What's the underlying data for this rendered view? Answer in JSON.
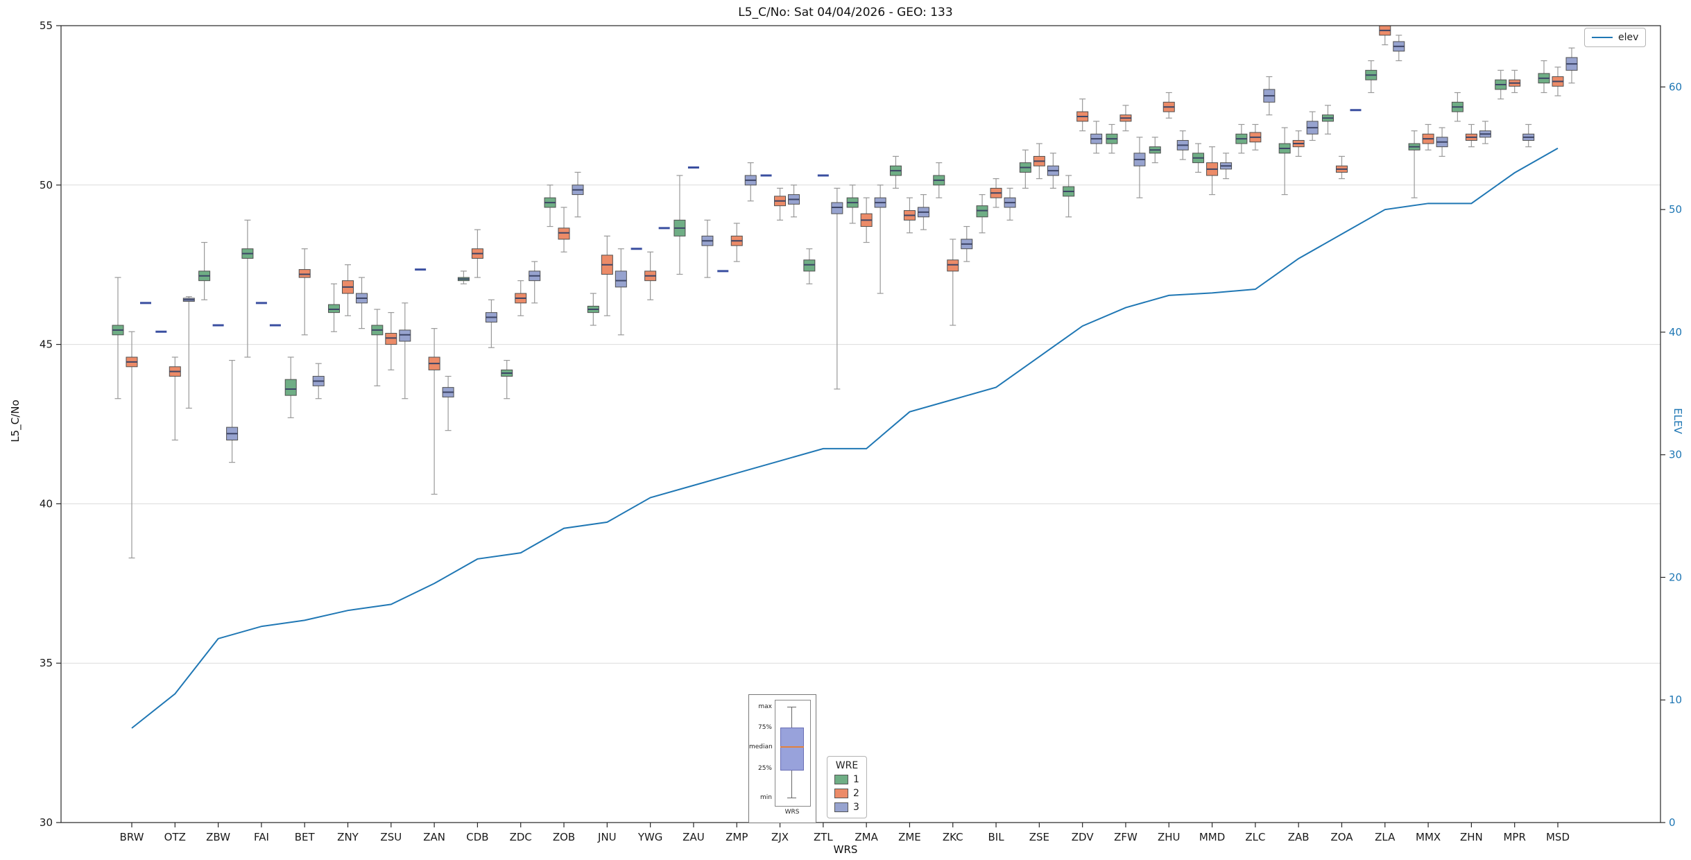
{
  "title": "L5_C/No: Sat 04/04/2026 - GEO: 133",
  "axes": {
    "left_label": "L5_C/No",
    "right_label": "ELEV",
    "x_label": "WRS",
    "left_ticks": [
      30,
      35,
      40,
      45,
      50,
      55
    ],
    "right_ticks": [
      0,
      10,
      20,
      30,
      40,
      50,
      60
    ],
    "left_range": [
      30,
      55
    ],
    "right_range": [
      0,
      65
    ]
  },
  "legend_elev": {
    "label": "elev",
    "color": "#1f77b4"
  },
  "legend_wre": {
    "title": "WRE",
    "entries": [
      {
        "label": "1",
        "color": "#6fae85"
      },
      {
        "label": "2",
        "color": "#ec8b68"
      },
      {
        "label": "3",
        "color": "#97a3cf"
      }
    ]
  },
  "inset": {
    "labels": [
      "max",
      "75%",
      "median",
      "25%",
      "min"
    ],
    "xlabel": "WRS"
  },
  "chart_data": {
    "type": "boxplot+line",
    "categories": [
      "BRW",
      "OTZ",
      "ZBW",
      "FAI",
      "BET",
      "ZNY",
      "ZSU",
      "ZAN",
      "CDB",
      "ZDC",
      "ZOB",
      "JNU",
      "YWG",
      "ZAU",
      "ZMP",
      "ZJX",
      "ZTL",
      "ZMA",
      "ZME",
      "ZKC",
      "BIL",
      "ZSE",
      "ZDV",
      "ZFW",
      "ZHU",
      "MMD",
      "ZLC",
      "ZAB",
      "ZOA",
      "ZLA",
      "MMX",
      "ZHN",
      "MPR",
      "MSD"
    ],
    "box_stats_order": [
      "min",
      "q1",
      "median",
      "q3",
      "max"
    ],
    "series": [
      {
        "name": "1",
        "color": "#6fae85",
        "boxes": [
          [
            43.3,
            45.3,
            45.45,
            45.6,
            47.1
          ],
          [
            45.4,
            45.4,
            45.4,
            45.4,
            45.4
          ],
          [
            46.4,
            47.0,
            47.15,
            47.3,
            48.2
          ],
          [
            44.6,
            47.7,
            47.85,
            48.0,
            48.9
          ],
          [
            42.7,
            43.4,
            43.6,
            43.9,
            44.6
          ],
          [
            45.4,
            46.0,
            46.1,
            46.25,
            46.9
          ],
          [
            43.7,
            45.3,
            45.45,
            45.6,
            46.1
          ],
          [
            47.35,
            47.35,
            47.35,
            47.35,
            47.35
          ],
          [
            46.9,
            47.0,
            47.05,
            47.1,
            47.3
          ],
          [
            43.3,
            44.0,
            44.1,
            44.2,
            44.5
          ],
          [
            48.7,
            49.3,
            49.45,
            49.6,
            50.0
          ],
          [
            45.6,
            46.0,
            46.1,
            46.2,
            46.6
          ],
          [
            48.0,
            48.0,
            48.0,
            48.0,
            48.0
          ],
          [
            47.2,
            48.4,
            48.65,
            48.9,
            50.3
          ],
          [
            47.3,
            47.3,
            47.3,
            47.3,
            47.3
          ],
          [
            50.3,
            50.3,
            50.3,
            50.3,
            50.3
          ],
          [
            46.9,
            47.3,
            47.5,
            47.65,
            48.0
          ],
          [
            48.8,
            49.3,
            49.45,
            49.6,
            50.0
          ],
          [
            49.9,
            50.3,
            50.45,
            50.6,
            50.9
          ],
          [
            49.6,
            50.0,
            50.15,
            50.3,
            50.7
          ],
          [
            48.5,
            49.0,
            49.2,
            49.35,
            49.7
          ],
          [
            49.9,
            50.4,
            50.55,
            50.7,
            51.1
          ],
          [
            49.0,
            49.65,
            49.8,
            49.95,
            50.3
          ],
          [
            51.0,
            51.3,
            51.45,
            51.6,
            51.9
          ],
          [
            50.7,
            51.0,
            51.1,
            51.2,
            51.5
          ],
          [
            50.4,
            50.7,
            50.85,
            51.0,
            51.3
          ],
          [
            51.0,
            51.3,
            51.45,
            51.6,
            51.9
          ],
          [
            49.7,
            51.0,
            51.15,
            51.3,
            51.8
          ],
          [
            51.6,
            52.0,
            52.1,
            52.2,
            52.5
          ],
          [
            52.9,
            53.3,
            53.45,
            53.6,
            53.9
          ],
          [
            49.6,
            51.1,
            51.2,
            51.3,
            51.7
          ],
          [
            52.0,
            52.3,
            52.45,
            52.6,
            52.9
          ],
          [
            52.7,
            53.0,
            53.15,
            53.3,
            53.6
          ],
          [
            52.9,
            53.2,
            53.35,
            53.5,
            53.9
          ]
        ]
      },
      {
        "name": "2",
        "color": "#ec8b68",
        "boxes": [
          [
            38.3,
            44.3,
            44.45,
            44.6,
            45.4
          ],
          [
            42.0,
            44.0,
            44.15,
            44.3,
            44.6
          ],
          [
            45.6,
            45.6,
            45.6,
            45.6,
            45.6
          ],
          [
            46.3,
            46.3,
            46.3,
            46.3,
            46.3
          ],
          [
            45.3,
            47.1,
            47.2,
            47.35,
            48.0
          ],
          [
            45.9,
            46.6,
            46.8,
            47.0,
            47.5
          ],
          [
            44.2,
            45.0,
            45.2,
            45.35,
            46.0
          ],
          [
            40.3,
            44.2,
            44.4,
            44.6,
            45.5
          ],
          [
            47.1,
            47.7,
            47.85,
            48.0,
            48.6
          ],
          [
            45.9,
            46.3,
            46.45,
            46.6,
            47.0
          ],
          [
            47.9,
            48.3,
            48.5,
            48.65,
            49.3
          ],
          [
            45.9,
            47.2,
            47.5,
            47.8,
            48.4
          ],
          [
            46.4,
            47.0,
            47.15,
            47.3,
            47.9
          ],
          [
            50.55,
            50.55,
            50.55,
            50.55,
            50.55
          ],
          [
            47.6,
            48.1,
            48.25,
            48.4,
            48.8
          ],
          [
            48.9,
            49.35,
            49.5,
            49.65,
            49.9
          ],
          [
            50.3,
            50.3,
            50.3,
            50.3,
            50.3
          ],
          [
            48.2,
            48.7,
            48.9,
            49.1,
            49.6
          ],
          [
            48.5,
            48.9,
            49.05,
            49.2,
            49.6
          ],
          [
            45.6,
            47.3,
            47.5,
            47.65,
            48.3
          ],
          [
            49.3,
            49.6,
            49.75,
            49.9,
            50.2
          ],
          [
            50.2,
            50.6,
            50.75,
            50.9,
            51.3
          ],
          [
            51.7,
            52.0,
            52.15,
            52.3,
            52.7
          ],
          [
            51.7,
            52.0,
            52.1,
            52.2,
            52.5
          ],
          [
            52.1,
            52.3,
            52.45,
            52.6,
            52.9
          ],
          [
            49.7,
            50.3,
            50.5,
            50.7,
            51.2
          ],
          [
            51.1,
            51.35,
            51.5,
            51.65,
            51.9
          ],
          [
            50.9,
            51.2,
            51.3,
            51.4,
            51.7
          ],
          [
            50.2,
            50.4,
            50.5,
            50.6,
            50.9
          ],
          [
            54.4,
            54.7,
            54.85,
            55.0,
            55.0
          ],
          [
            51.1,
            51.3,
            51.45,
            51.6,
            51.9
          ],
          [
            51.2,
            51.4,
            51.5,
            51.6,
            51.9
          ],
          [
            52.9,
            53.1,
            53.2,
            53.3,
            53.6
          ],
          [
            52.8,
            53.1,
            53.25,
            53.4,
            53.7
          ]
        ]
      },
      {
        "name": "3",
        "color": "#97a3cf",
        "boxes": [
          [
            46.3,
            46.3,
            46.3,
            46.3,
            46.3
          ],
          [
            43.0,
            46.35,
            46.4,
            46.45,
            46.5
          ],
          [
            41.3,
            42.0,
            42.2,
            42.4,
            44.5
          ],
          [
            45.6,
            45.6,
            45.6,
            45.6,
            45.6
          ],
          [
            43.3,
            43.7,
            43.85,
            44.0,
            44.4
          ],
          [
            45.5,
            46.3,
            46.45,
            46.6,
            47.1
          ],
          [
            43.3,
            45.1,
            45.3,
            45.45,
            46.3
          ],
          [
            42.3,
            43.35,
            43.5,
            43.65,
            44.0
          ],
          [
            44.9,
            45.7,
            45.85,
            46.0,
            46.4
          ],
          [
            46.3,
            47.0,
            47.15,
            47.3,
            47.6
          ],
          [
            49.0,
            49.7,
            49.85,
            50.0,
            50.4
          ],
          [
            45.3,
            46.8,
            47.0,
            47.3,
            48.0
          ],
          [
            48.65,
            48.65,
            48.65,
            48.65,
            48.65
          ],
          [
            47.1,
            48.1,
            48.25,
            48.4,
            48.9
          ],
          [
            49.5,
            50.0,
            50.15,
            50.3,
            50.7
          ],
          [
            49.0,
            49.4,
            49.55,
            49.7,
            50.0
          ],
          [
            43.6,
            49.1,
            49.3,
            49.45,
            49.9
          ],
          [
            46.6,
            49.3,
            49.45,
            49.6,
            50.0
          ],
          [
            48.6,
            49.0,
            49.15,
            49.3,
            49.7
          ],
          [
            47.6,
            48.0,
            48.15,
            48.3,
            48.7
          ],
          [
            48.9,
            49.3,
            49.45,
            49.6,
            49.9
          ],
          [
            49.9,
            50.3,
            50.45,
            50.6,
            51.0
          ],
          [
            51.0,
            51.3,
            51.45,
            51.6,
            52.0
          ],
          [
            49.6,
            50.6,
            50.8,
            51.0,
            51.5
          ],
          [
            50.8,
            51.1,
            51.25,
            51.4,
            51.7
          ],
          [
            50.2,
            50.5,
            50.6,
            50.7,
            51.0
          ],
          [
            52.2,
            52.6,
            52.8,
            53.0,
            53.4
          ],
          [
            51.4,
            51.6,
            51.8,
            52.0,
            52.3
          ],
          [
            52.35,
            52.35,
            52.35,
            52.35,
            52.35
          ],
          [
            53.9,
            54.2,
            54.35,
            54.5,
            54.7
          ],
          [
            50.9,
            51.2,
            51.35,
            51.5,
            51.8
          ],
          [
            51.3,
            51.5,
            51.6,
            51.7,
            52.0
          ],
          [
            51.2,
            51.4,
            51.5,
            51.6,
            51.9
          ],
          [
            53.2,
            53.6,
            53.8,
            54.0,
            54.3
          ]
        ]
      }
    ],
    "elev_line": {
      "name": "elev",
      "color": "#1f77b4",
      "values": [
        7.7,
        10.5,
        15,
        16,
        16.5,
        17.3,
        17.8,
        19.5,
        21.5,
        22,
        24,
        24.5,
        26.5,
        27.5,
        28.5,
        29.5,
        30.5,
        30.5,
        33.5,
        34.5,
        35.5,
        38,
        40.5,
        42,
        43,
        43.2,
        43.5,
        46,
        48,
        50,
        50.5,
        50.5,
        53,
        55
      ]
    },
    "title": "L5_C/No: Sat 04/04/2026 - GEO: 133",
    "xlabel": "WRS",
    "ylabel_left": "L5_C/No",
    "ylabel_right": "ELEV",
    "ylim_left": [
      30,
      55
    ],
    "ylim_right": [
      0,
      65
    ],
    "grid": "horizontal",
    "legend_position": "upper-right (elev), lower-center (WRE)"
  }
}
